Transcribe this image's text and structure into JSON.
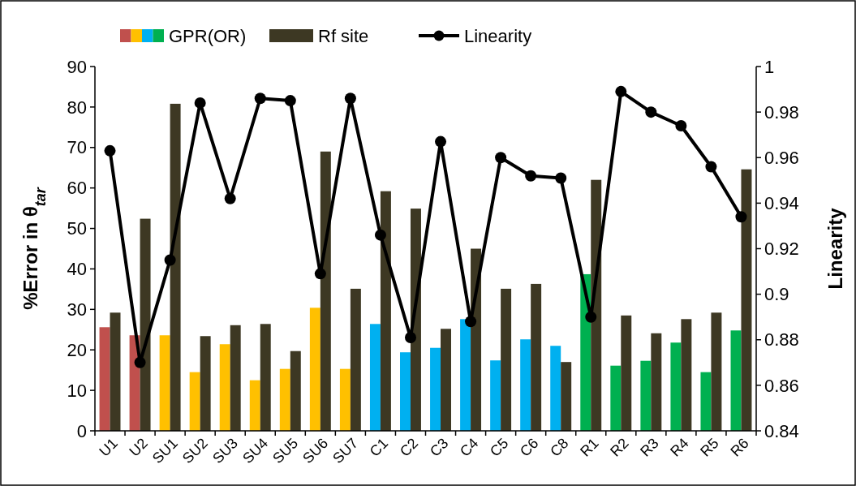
{
  "chart_data": {
    "type": "bar",
    "categories": [
      "U1",
      "U2",
      "SU1",
      "SU2",
      "SU3",
      "SU4",
      "SU5",
      "SU6",
      "SU7",
      "C1",
      "C2",
      "C3",
      "C4",
      "C5",
      "C6",
      "C8",
      "R1",
      "R2",
      "R3",
      "R4",
      "R5",
      "R6"
    ],
    "series": [
      {
        "name": "GPR(OR)",
        "colors": [
          "#c0504d",
          "#c0504d",
          "#ffc000",
          "#ffc000",
          "#ffc000",
          "#ffc000",
          "#ffc000",
          "#ffc000",
          "#ffc000",
          "#00b0f0",
          "#00b0f0",
          "#00b0f0",
          "#00b0f0",
          "#00b0f0",
          "#00b0f0",
          "#00b0f0",
          "#00b050",
          "#00b050",
          "#00b050",
          "#00b050",
          "#00b050",
          "#00b050"
        ],
        "values": [
          25.6,
          23.6,
          23.6,
          14.5,
          21.4,
          12.5,
          15.3,
          30.4,
          15.3,
          26.4,
          19.4,
          20.5,
          27.6,
          17.4,
          22.6,
          21,
          38.7,
          16.1,
          17.3,
          21.8,
          14.5,
          24.8
        ]
      },
      {
        "name": "Rf site",
        "color": "#3d3823",
        "values": [
          29.2,
          52.4,
          80.8,
          23.4,
          26.1,
          26.4,
          19.7,
          69,
          35.1,
          59.2,
          54.9,
          25.2,
          45,
          35.1,
          36.3,
          17,
          62,
          28.5,
          24.1,
          27.6,
          29.2,
          64.6
        ]
      },
      {
        "name": "Linearity",
        "type": "line",
        "axis": "y2",
        "color": "#000000",
        "marker": "circle",
        "values": [
          0.963,
          0.87,
          0.915,
          0.984,
          0.942,
          0.986,
          0.985,
          0.909,
          0.986,
          0.926,
          0.881,
          0.967,
          0.888,
          0.96,
          0.952,
          0.951,
          0.89,
          0.989,
          0.98,
          0.974,
          0.956,
          0.934
        ]
      }
    ],
    "ylabel": "%Error in θ$_{tar}$",
    "y2label": "Linearity",
    "ylim": [
      0,
      90
    ],
    "yticks": [
      0,
      10,
      20,
      30,
      40,
      50,
      60,
      70,
      80,
      90
    ],
    "y2lim": [
      0.84,
      1
    ],
    "y2ticks": [
      0.84,
      0.86,
      0.88,
      0.9,
      0.92,
      0.94,
      0.96,
      0.98,
      1
    ],
    "legend": "top",
    "grid": false
  }
}
